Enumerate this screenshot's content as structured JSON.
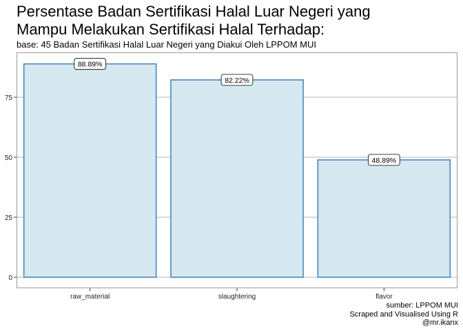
{
  "chart_data": {
    "type": "bar",
    "title_lines": [
      "Persentase Badan Sertifikasi Halal Luar Negeri yang",
      "Mampu Melakukan Sertifikasi Halal Terhadap:"
    ],
    "subtitle": "base: 45 Badan Sertifikasi Halal Luar Negeri yang Diakui Oleh LPPOM MUI",
    "categories": [
      "raw_material",
      "slaughtering",
      "flavor"
    ],
    "values": [
      88.89,
      82.22,
      48.89
    ],
    "data_labels": [
      "88.89%",
      "82.22%",
      "48.89%"
    ],
    "xlabel": "",
    "ylabel": "",
    "ylim": [
      0,
      92
    ],
    "yticks": [
      0,
      25,
      50,
      75
    ],
    "grid": "horizontal",
    "colors": {
      "bar_fill": "#d6e9f1",
      "bar_stroke": "#4a86bb",
      "grid": "#b3b3b3",
      "panel_border": "#9a9a9a"
    },
    "caption_lines": [
      "sumber: LPPOM MUI",
      "Scraped and Visualised Using R",
      "@mr.ikanx"
    ]
  }
}
